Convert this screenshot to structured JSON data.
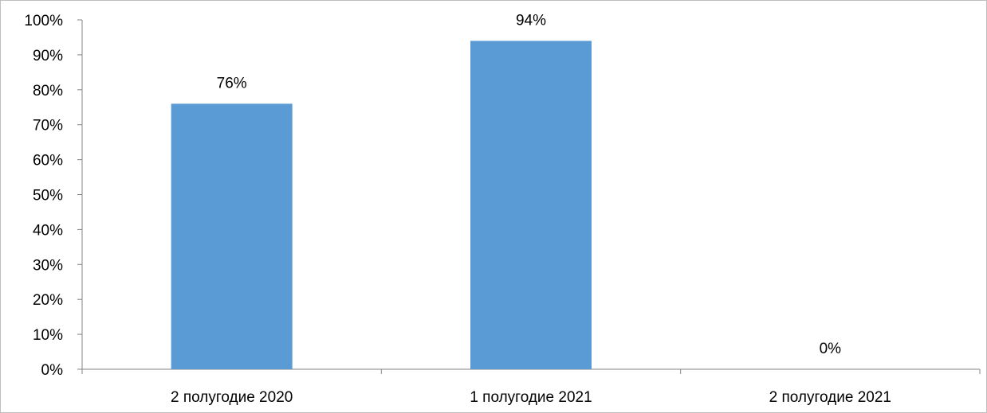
{
  "chart_data": {
    "type": "bar",
    "title": "",
    "xlabel": "",
    "ylabel": "",
    "categories": [
      "2 полугодие 2020",
      "1 полугодие 2021",
      "2 полугодие 2021"
    ],
    "values": [
      76,
      94,
      0
    ],
    "data_labels": [
      "76%",
      "94%",
      "0%"
    ],
    "ylim": [
      0,
      100
    ],
    "y_ticks": [
      0,
      10,
      20,
      30,
      40,
      50,
      60,
      70,
      80,
      90,
      100
    ],
    "y_tick_labels": [
      "0%",
      "10%",
      "20%",
      "30%",
      "40%",
      "50%",
      "60%",
      "70%",
      "80%",
      "90%",
      "100%"
    ],
    "grid": false,
    "legend": "none",
    "bar_color": "#5b9bd5",
    "axis_color": "#868686"
  }
}
